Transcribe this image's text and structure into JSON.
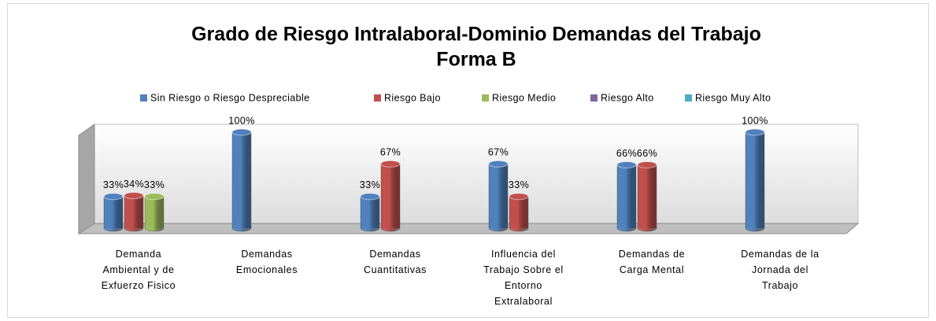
{
  "chart_data": {
    "type": "bar3d",
    "title": "Grado de Riesgo Intralaboral-Dominio Demandas del Trabajo",
    "subtitle": "Forma B",
    "categories": [
      "Demanda Ambiental y de Exfuerzo Fisico",
      "Demandas Emocionales",
      "Demandas Cuantitativas",
      "Influencia del Trabajo Sobre el Entorno Extralaboral",
      "Demandas de Carga Mental",
      "Demandas de la Jornada del Trabajo"
    ],
    "series": [
      {
        "name": "Sin Riesgo o Riesgo Despreciable",
        "color": "#4f81bd",
        "values": [
          33,
          100,
          33,
          67,
          66,
          100
        ],
        "value_labels": [
          "33%",
          "100%",
          "33%",
          "67%",
          "66%",
          "100%"
        ]
      },
      {
        "name": "Riesgo Bajo",
        "color": "#c0504d",
        "values": [
          34,
          null,
          67,
          33,
          66,
          null
        ],
        "value_labels": [
          "34%",
          null,
          "67%",
          "33%",
          "66%",
          null
        ]
      },
      {
        "name": "Riesgo Medio",
        "color": "#9bbb59",
        "values": [
          33,
          null,
          null,
          null,
          null,
          null
        ],
        "value_labels": [
          "33%",
          null,
          null,
          null,
          null,
          null
        ]
      },
      {
        "name": "Riesgo Alto",
        "color": "#8064a2",
        "values": [
          null,
          null,
          null,
          null,
          null,
          null
        ]
      },
      {
        "name": "Riesgo  Muy Alto",
        "color": "#4bacc6",
        "values": [
          null,
          null,
          null,
          null,
          null,
          null
        ]
      }
    ],
    "ylim": [
      0,
      100
    ],
    "legend": "top"
  }
}
